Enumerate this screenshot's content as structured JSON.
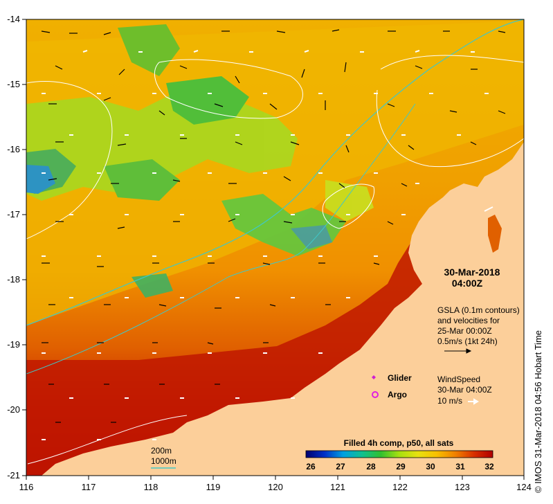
{
  "map": {
    "datetime": {
      "date": "30-Mar-2018",
      "time": "04:00Z"
    },
    "gsla": {
      "line1": "GSLA (0.1m contours)",
      "line2": "and velocities for",
      "line3": "25-Mar 00:00Z",
      "line4": "0.5m/s (1kt 24h)"
    },
    "legend_glider": "Glider",
    "legend_argo": "Argo",
    "wind": {
      "line1": "WindSpeed",
      "line2": "30-Mar 04:00Z",
      "line3": "10 m/s"
    },
    "colorbar": {
      "title": "Filled 4h comp, p50, all sats",
      "ticks": [
        "26",
        "27",
        "28",
        "29",
        "30",
        "31",
        "32"
      ],
      "colors": [
        "#00006e",
        "#0030c8",
        "#00a0e0",
        "#10c090",
        "#30c030",
        "#a8e010",
        "#e8e010",
        "#f8c000",
        "#f08000",
        "#d83000",
        "#b00000"
      ]
    },
    "bathymetry": {
      "label_200m": "200m",
      "label_1000m": "1000m",
      "line_color": "#40c8c8"
    },
    "axes": {
      "x_ticks": [
        "116",
        "117",
        "118",
        "119",
        "120",
        "121",
        "122",
        "123",
        "124"
      ],
      "y_ticks": [
        "-14",
        "-15",
        "-16",
        "-17",
        "-18",
        "-19",
        "-20",
        "-21"
      ],
      "x_range": [
        116,
        124
      ],
      "y_range": [
        -21,
        -14
      ]
    },
    "colors": {
      "land": "#fccf9a",
      "sst_hot": "#b00000",
      "glider": "#d020d0",
      "argo": "#e020e0"
    },
    "credit": "© IMOS 31-Mar-2018 04:56 Hobart Time"
  }
}
